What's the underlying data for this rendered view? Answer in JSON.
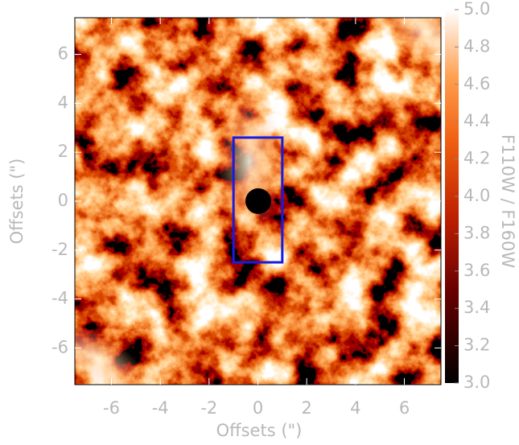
{
  "chart_data": {
    "type": "image",
    "xlabel": "Offsets (\")",
    "ylabel": "Offsets (\")",
    "xlim": [
      -7.5,
      7.5
    ],
    "ylim": [
      -7.5,
      7.5
    ],
    "xticks": [
      -6,
      -4,
      -2,
      0,
      2,
      4,
      6
    ],
    "yticks": [
      -6,
      -4,
      -2,
      0,
      2,
      4,
      6
    ],
    "colorbar": {
      "label": "F110W / F160W",
      "lim": [
        3.0,
        5.0
      ],
      "ticks": [
        {
          "value": 3.0,
          "label": "3.0"
        },
        3.2,
        3.4,
        3.6,
        3.8,
        {
          "value": 4.0,
          "label": "4.0"
        },
        4.2,
        4.4,
        4.6,
        4.8,
        {
          "value": 5.0,
          "label": "5.0"
        }
      ]
    },
    "box": {
      "x": [
        -1,
        1
      ],
      "y": [
        -2.5,
        2.6
      ],
      "color": "#1a1ae0"
    }
  }
}
